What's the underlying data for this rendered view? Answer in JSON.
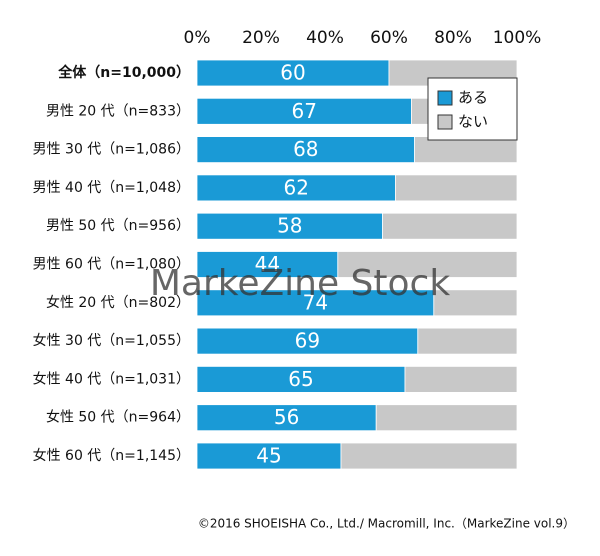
{
  "chart_data": {
    "type": "stacked-barh",
    "categories": [
      "全体（n=10,000）",
      "男性 20 代（n=833）",
      "男性 30 代（n=1,086）",
      "男性 40 代（n=1,048）",
      "男性 50 代（n=956）",
      "男性 60 代（n=1,080）",
      "女性 20 代（n=802）",
      "女性 30 代（n=1,055）",
      "女性 40 代（n=1,031）",
      "女性 50 代（n=964）",
      "女性 60 代（n=1,145）"
    ],
    "series": [
      {
        "name": "ある",
        "color": "#1a9ad6",
        "values": [
          60,
          67,
          68,
          62,
          58,
          44,
          74,
          69,
          65,
          56,
          45
        ]
      },
      {
        "name": "ない",
        "color": "#c8c8c8",
        "values": [
          40,
          33,
          32,
          38,
          42,
          56,
          26,
          31,
          35,
          44,
          55
        ]
      }
    ],
    "xlim": [
      0,
      100
    ],
    "xticks": [
      {
        "value": 0,
        "label": "0%"
      },
      {
        "value": 20,
        "label": "20%"
      },
      {
        "value": 40,
        "label": "40%"
      },
      {
        "value": 60,
        "label": "60%"
      },
      {
        "value": 80,
        "label": "80%"
      },
      {
        "value": 100,
        "label": "100%"
      }
    ],
    "legend": "upper right",
    "watermark": "MarkeZine Stock",
    "footnote": "©2016 SHOEISHA Co., Ltd./ Macromill, Inc.（MarkeZine vol.9）"
  }
}
